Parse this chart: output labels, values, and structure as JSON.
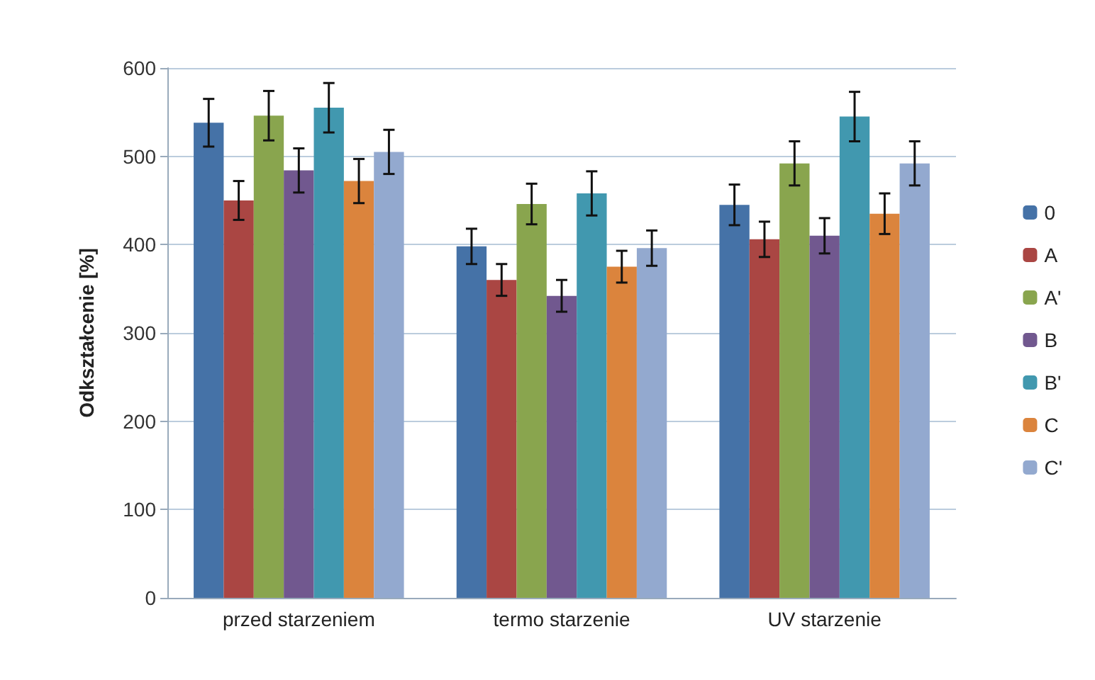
{
  "chart_data": {
    "type": "bar",
    "ylabel": "Odkształcenie [%]",
    "categories": [
      "przed starzeniem",
      "termo starzenie",
      "UV starzenie"
    ],
    "ylim": [
      0,
      600
    ],
    "yticks": [
      0,
      100,
      200,
      300,
      400,
      500,
      600
    ],
    "grid": "y",
    "legend": "right",
    "series": [
      {
        "name": "0",
        "color": "#4572a7",
        "values": [
          538,
          398,
          445
        ],
        "errors": [
          27,
          20,
          23
        ]
      },
      {
        "name": "A",
        "color": "#aa4643",
        "values": [
          450,
          360,
          406
        ],
        "errors": [
          22,
          18,
          20
        ]
      },
      {
        "name": "A'",
        "color": "#89a54e",
        "values": [
          546,
          446,
          492
        ],
        "errors": [
          28,
          23,
          25
        ]
      },
      {
        "name": "B",
        "color": "#71588f",
        "values": [
          484,
          342,
          410
        ],
        "errors": [
          25,
          18,
          20
        ]
      },
      {
        "name": "B'",
        "color": "#4198af",
        "values": [
          555,
          458,
          545
        ],
        "errors": [
          28,
          25,
          28
        ]
      },
      {
        "name": "C",
        "color": "#db843d",
        "values": [
          472,
          375,
          435
        ],
        "errors": [
          25,
          18,
          23
        ]
      },
      {
        "name": "C'",
        "color": "#93a9cf",
        "values": [
          505,
          396,
          492
        ],
        "errors": [
          25,
          20,
          25
        ]
      }
    ]
  }
}
